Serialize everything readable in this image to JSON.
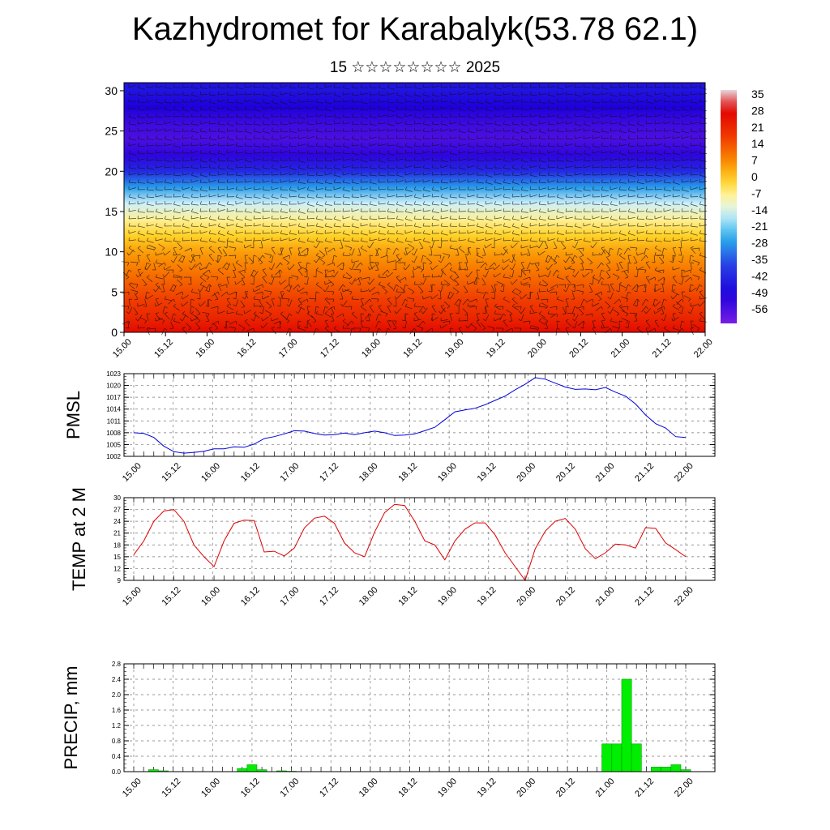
{
  "title": "Kazhydromet for Karabalyk(53.78 62.1)",
  "subtitle": "15 ☆☆☆☆☆☆☆☆ 2025",
  "colors": {
    "pmsl_line": "#0000dd",
    "temp_line": "#dd0000",
    "precip_bar": "#00ee00",
    "precip_bar_edge": "#009900"
  },
  "chart_data": [
    {
      "id": "upper-air-section",
      "type": "heatmap",
      "title": "",
      "xlabel": "",
      "ylabel": "",
      "ylim": [
        0,
        31
      ],
      "ytick_labels": [
        "0",
        "5",
        "10",
        "15",
        "20",
        "25",
        "30"
      ],
      "xtick_labels": [
        "15.00",
        "15.12",
        "16.00",
        "16.12",
        "17.00",
        "17.12",
        "18.00",
        "18.12",
        "19.00",
        "19.12",
        "20.00",
        "20.12",
        "21.00",
        "21.12",
        "22.00"
      ],
      "overlay": "wind barbs",
      "colorbar": {
        "labels": [
          "35",
          "28",
          "21",
          "14",
          "7",
          "0",
          "-7",
          "-14",
          "-21",
          "-28",
          "-35",
          "-42",
          "-49",
          "-56"
        ],
        "range": [
          -60,
          38
        ]
      },
      "temperature_profile": {
        "height": [
          0,
          2,
          4,
          6,
          8,
          10,
          12,
          14,
          16,
          18,
          20,
          22,
          24,
          26,
          28,
          30
        ],
        "value": [
          28,
          22,
          18,
          14,
          10,
          6,
          0,
          -6,
          -14,
          -26,
          -40,
          -50,
          -54,
          -52,
          -48,
          -44
        ]
      }
    },
    {
      "id": "pmsl",
      "type": "line",
      "title": "",
      "xlabel": "",
      "ylabel": "PMSL",
      "ylim": [
        1002,
        1023
      ],
      "ytick_labels": [
        "1002",
        "1005",
        "1008",
        "1011",
        "1014",
        "1017",
        "1020",
        "1023"
      ],
      "xtick_labels": [
        "15.00",
        "15.12",
        "16.00",
        "16.12",
        "17.00",
        "17.12",
        "18.00",
        "18.12",
        "19.00",
        "19.12",
        "20.00",
        "20.12",
        "21.00",
        "21.12",
        "22.00"
      ],
      "values": [
        1008,
        1007.8,
        1006.8,
        1004.6,
        1003.2,
        1002.8,
        1003,
        1003.3,
        1003.9,
        1003.9,
        1004.4,
        1004.3,
        1005.1,
        1006.5,
        1007,
        1007.7,
        1008.5,
        1008.4,
        1007.8,
        1007.4,
        1007.5,
        1007.9,
        1007.5,
        1008,
        1008.4,
        1008,
        1007.3,
        1007.4,
        1007.7,
        1008.5,
        1009.4,
        1011.3,
        1013.3,
        1013.8,
        1014.2,
        1015.1,
        1016.2,
        1017.3,
        1018.9,
        1020.3,
        1022,
        1021.6,
        1020.6,
        1019.6,
        1019,
        1019.1,
        1018.9,
        1019.5,
        1018.3,
        1017.3,
        1015.3,
        1012.5,
        1010.3,
        1009.2,
        1007,
        1006.8
      ]
    },
    {
      "id": "temp2m",
      "type": "line",
      "title": "",
      "xlabel": "",
      "ylabel": "TEMP at 2 M",
      "ylim": [
        9,
        30
      ],
      "ytick_labels": [
        "9",
        "12",
        "15",
        "18",
        "21",
        "24",
        "27",
        "30"
      ],
      "xtick_labels": [
        "15.00",
        "15.12",
        "16.00",
        "16.12",
        "17.00",
        "17.12",
        "18.00",
        "18.12",
        "19.00",
        "19.12",
        "20.00",
        "20.12",
        "21.00",
        "21.12",
        "22.00"
      ],
      "values": [
        15.5,
        19,
        24,
        26.6,
        27,
        24,
        18,
        15,
        12.5,
        19,
        23.5,
        24.3,
        24.2,
        16.2,
        16.4,
        15.2,
        17.2,
        22.3,
        24.8,
        25.3,
        23.5,
        18.5,
        16,
        15,
        21.3,
        26.2,
        28.3,
        28,
        24,
        19,
        18,
        14.2,
        19,
        22,
        23.6,
        23.6,
        20.6,
        16,
        12.5,
        9,
        17,
        21.5,
        24,
        24.7,
        22,
        17,
        14.5,
        16,
        18.2,
        18,
        17.2,
        22.4,
        22.2,
        18.5,
        16.8,
        15
      ]
    },
    {
      "id": "precip",
      "type": "bar",
      "title": "",
      "xlabel": "",
      "ylabel": "PRECIP, mm",
      "ylim": [
        0,
        2.8
      ],
      "ytick_labels": [
        "0.0",
        "0.4",
        "0.8",
        "1.2",
        "1.6",
        "2.0",
        "2.4",
        "2.8"
      ],
      "xtick_labels": [
        "15.00",
        "15.12",
        "16.00",
        "16.12",
        "17.00",
        "17.12",
        "18.00",
        "18.12",
        "19.00",
        "19.12",
        "20.00",
        "20.12",
        "21.00",
        "21.12",
        "22.00"
      ],
      "values": [
        0,
        0,
        0.05,
        0.02,
        0,
        0,
        0,
        0,
        0,
        0,
        0,
        0.08,
        0.18,
        0.05,
        0,
        0.02,
        0.01,
        0,
        0,
        0,
        0,
        0,
        0,
        0,
        0,
        0,
        0,
        0,
        0,
        0,
        0,
        0,
        0,
        0,
        0,
        0,
        0,
        0,
        0,
        0,
        0,
        0,
        0,
        0,
        0,
        0,
        0,
        0,
        0.72,
        0.72,
        2.4,
        0.72,
        0,
        0.12,
        0.12,
        0.18,
        0.05
      ]
    }
  ]
}
